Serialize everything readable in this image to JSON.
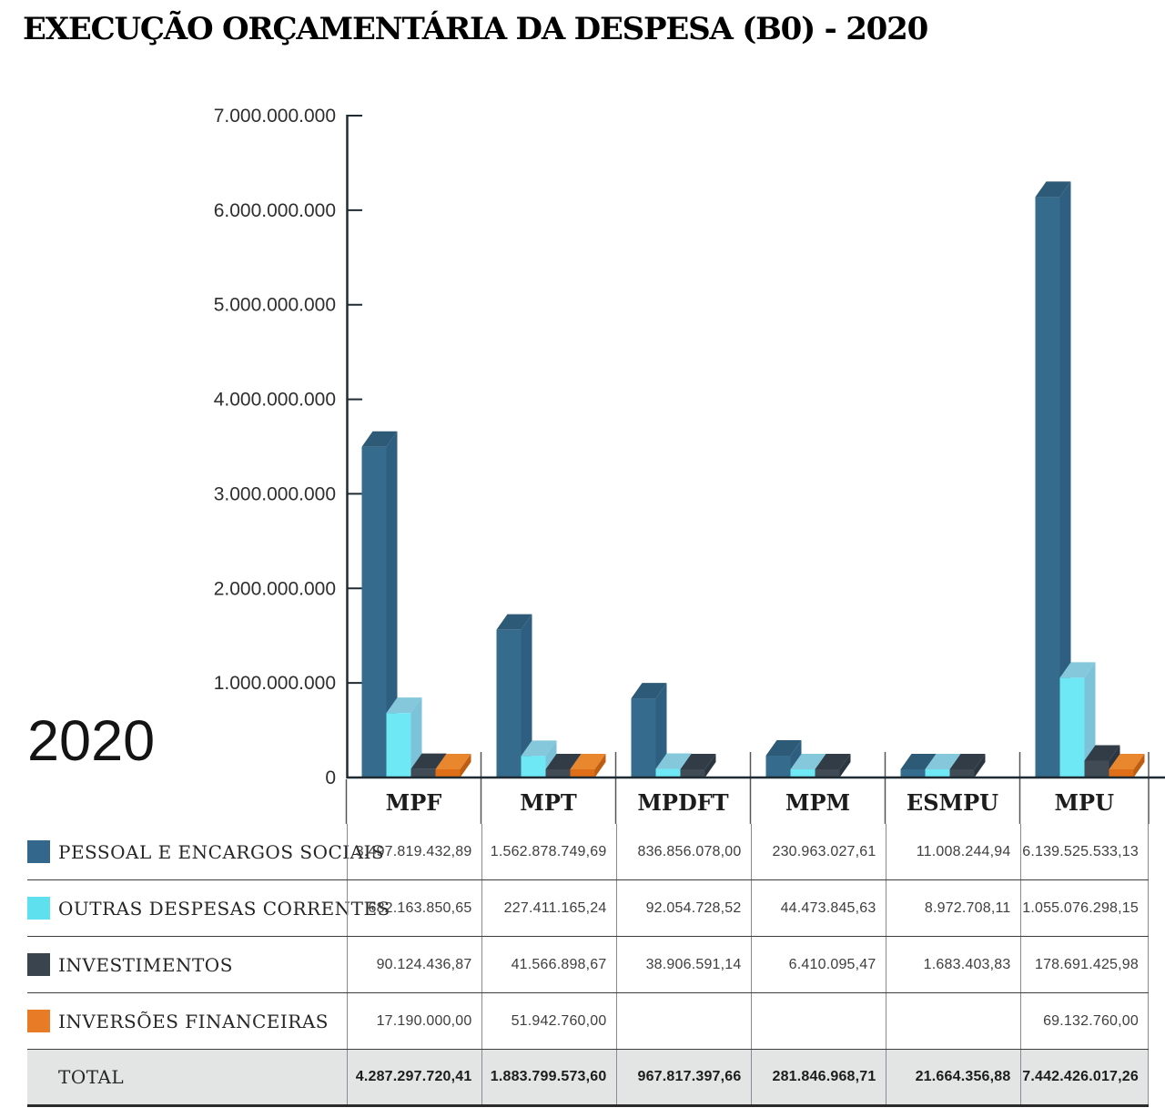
{
  "title": "EXECUÇÃO ORÇAMENTÁRIA DA DESPESA (B0) - 2020",
  "year_label": "2020",
  "chart_data": {
    "type": "bar",
    "style": "3d-columns",
    "title": "EXECUÇÃO ORÇAMENTÁRIA DA DESPESA (B0) - 2020",
    "categories": [
      "MPF",
      "MPT",
      "MPDFT",
      "MPM",
      "ESMPU",
      "MPU"
    ],
    "series": [
      {
        "name": "PESSOAL E ENCARGOS SOCIAIS",
        "colors": {
          "legend": "#33688C",
          "front": "#356B8C",
          "top": "#2C5A77",
          "side": "#2E5F80"
        },
        "values": [
          3497819432.89,
          1562878749.69,
          836856078.0,
          230963027.61,
          11008244.94,
          6139525533.13
        ],
        "values_formatted": [
          "3.497.819.432,89",
          "1.562.878.749,69",
          "836.856.078,00",
          "230.963.027,61",
          "11.008.244,94",
          "6.139.525.533,13"
        ]
      },
      {
        "name": "OUTRAS DESPESAS CORRENTES",
        "colors": {
          "legend": "#5FE0EF",
          "front": "#6FE8F6",
          "top": "#85C8DB",
          "side": "#7CC2D8"
        },
        "values": [
          682163850.65,
          227411165.24,
          92054728.52,
          44473845.63,
          8972708.11,
          1055076298.15
        ],
        "values_formatted": [
          "682.163.850,65",
          "227.411.165,24",
          "92.054.728,52",
          "44.473.845,63",
          "8.972.708,11",
          "1.055.076.298,15"
        ]
      },
      {
        "name": "INVESTIMENTOS",
        "colors": {
          "legend": "#3A444E",
          "front": "#414B55",
          "top": "#323C47",
          "side": "#2C3641"
        },
        "values": [
          90124436.87,
          41566898.67,
          38906591.14,
          6410095.47,
          1683403.83,
          178691425.98
        ],
        "values_formatted": [
          "90.124.436,87",
          "41.566.898,67",
          "38.906.591,14",
          "6.410.095,47",
          "1.683.403,83",
          "178.691.425,98"
        ]
      },
      {
        "name": "INVERSÕES FINANCEIRAS",
        "colors": {
          "legend": "#E87C26",
          "front": "#DF6E18",
          "top": "#E9872E",
          "side": "#BF5D10"
        },
        "values": [
          17190000.0,
          51942760.0,
          null,
          null,
          null,
          69132760.0
        ],
        "values_formatted": [
          "17.190.000,00",
          "51.942.760,00",
          "",
          "",
          "",
          "69.132.760,00"
        ]
      }
    ],
    "total_label": "TOTAL",
    "totals_formatted": [
      "4.287.297.720,41",
      "1.883.799.573,60",
      "967.817.397,66",
      "281.846.968,71",
      "21.664.356,88",
      "7.442.426.017,26"
    ],
    "y_axis": {
      "min": 0,
      "max": 7000000000,
      "tick_step": 1000000000,
      "tick_labels": [
        "0",
        "1.000.000.000",
        "2.000.000.000",
        "3.000.000.000",
        "4.000.000.000",
        "5.000.000.000",
        "6.000.000.000",
        "7.000.000.000"
      ]
    },
    "grid": false,
    "legend_position": "table-rows-below-chart",
    "axis_color": "#1F2B33"
  }
}
